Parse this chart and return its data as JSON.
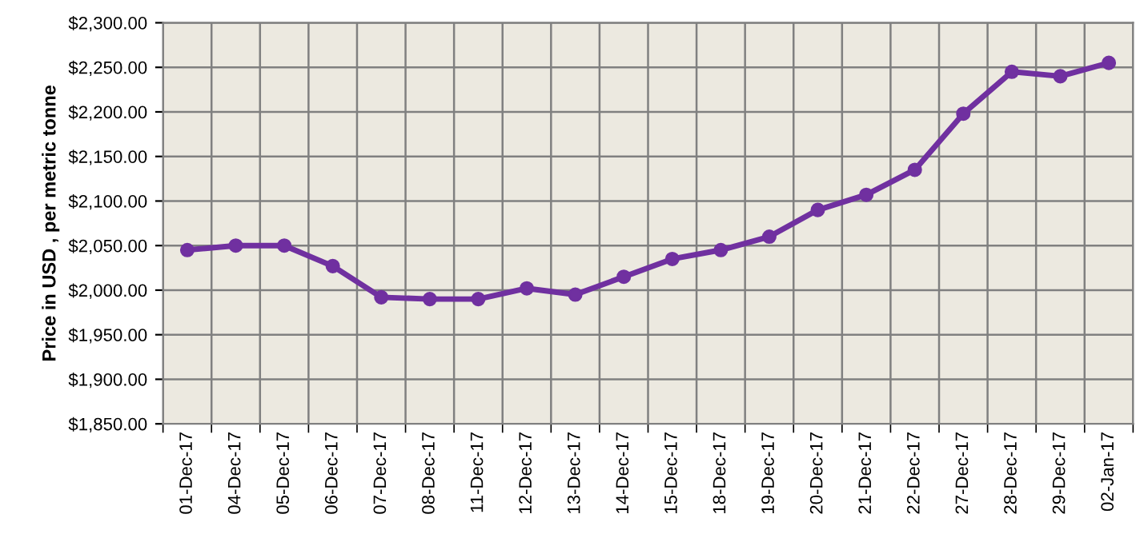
{
  "chart_data": {
    "type": "line",
    "ylabel": "Price in USD , per metric tonne",
    "categories": [
      "01-Dec-17",
      "04-Dec-17",
      "05-Dec-17",
      "06-Dec-17",
      "07-Dec-17",
      "08-Dec-17",
      "11-Dec-17",
      "12-Dec-17",
      "13-Dec-17",
      "14-Dec-17",
      "15-Dec-17",
      "18-Dec-17",
      "19-Dec-17",
      "20-Dec-17",
      "21-Dec-17",
      "22-Dec-17",
      "27-Dec-17",
      "28-Dec-17",
      "29-Dec-17",
      "02-Jan-17"
    ],
    "series": [
      {
        "color": "#7030a0",
        "values": [
          2045,
          2050,
          2050,
          2027,
          1992,
          1990,
          1990,
          2002,
          1995,
          2015,
          2035,
          2045,
          2060,
          2090,
          2107,
          2135,
          2198,
          2245,
          2240,
          2255
        ]
      }
    ],
    "ylim": [
      1850,
      2300
    ],
    "yticks": [
      {
        "value": 1850,
        "label": "$1,850.00"
      },
      {
        "value": 1900,
        "label": "$1,900.00"
      },
      {
        "value": 1950,
        "label": "$1,950.00"
      },
      {
        "value": 2000,
        "label": "$2,000.00"
      },
      {
        "value": 2050,
        "label": "$2,050.00"
      },
      {
        "value": 2100,
        "label": "$2,100.00"
      },
      {
        "value": 2150,
        "label": "$2,150.00"
      },
      {
        "value": 2200,
        "label": "$2,200.00"
      },
      {
        "value": 2250,
        "label": "$2,250.00"
      },
      {
        "value": 2300,
        "label": "$2,300.00"
      }
    ],
    "grid": true,
    "marker": "circle",
    "line_style": "solid"
  }
}
